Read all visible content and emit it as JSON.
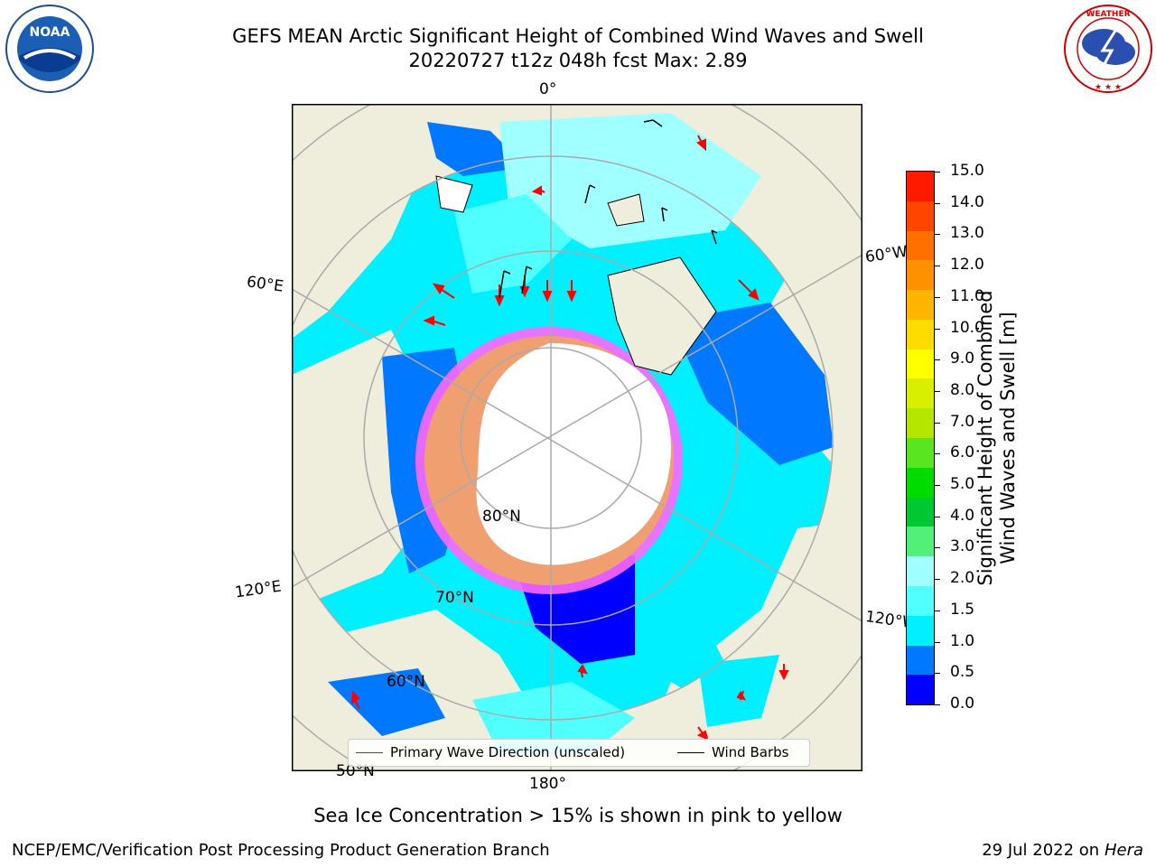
{
  "title_line1": "GEFS MEAN Arctic Significant Height of Combined Wind Waves and Swell",
  "title_line2": "20220727 t12z 048h fcst   Max: 2.89",
  "logos": {
    "left": "NOAA",
    "right": "NATIONAL WEATHER SERVICE"
  },
  "map": {
    "lon_labels": {
      "top": "0°",
      "bottom": "180°",
      "left_upper": "60°E",
      "left_lower": "120°E",
      "right_upper": "60°W",
      "right_lower": "120°W"
    },
    "lat_labels": {
      "l80": "80°N",
      "l70": "70°N",
      "l60": "60°N",
      "l50": "50°N"
    }
  },
  "legend": {
    "wave_label": "Primary Wave Direction (unscaled)",
    "barb_label": "Wind Barbs",
    "wave_color": "#ff0000",
    "barb_color": "#000000"
  },
  "colorbar": {
    "label_line1": "Significant Height of Combined",
    "label_line2": "Wind Waves and Swell [m]",
    "ticks": [
      "15.0",
      "14.0",
      "13.0",
      "12.0",
      "11.0",
      "10.0",
      "9.0",
      "8.0",
      "7.0",
      "6.0",
      "5.0",
      "4.0",
      "3.0",
      "2.0",
      "1.5",
      "1.0",
      "0.5",
      "0.0"
    ],
    "colors": [
      "#ff1a00",
      "#ff4500",
      "#ff7000",
      "#ff9100",
      "#ffb400",
      "#ffdc00",
      "#ffff00",
      "#d8f000",
      "#b4e600",
      "#5ae61e",
      "#00dc00",
      "#00c832",
      "#52f078",
      "#a0ffff",
      "#50ffff",
      "#00f0ff",
      "#0078ff",
      "#0000ff"
    ]
  },
  "note": "Sea Ice Concentration > 15% is shown in pink to yellow",
  "footer_left": "NCEP/EMC/Verification Post Processing Product Generation Branch",
  "footer_right_date": "29 Jul 2022 on ",
  "footer_right_host": "Hera"
}
